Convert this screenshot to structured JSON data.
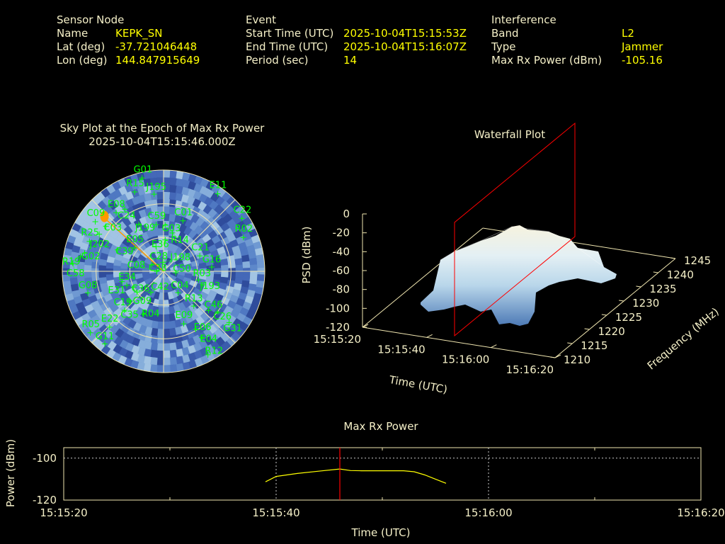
{
  "header": {
    "sensor": {
      "title": "Sensor Node",
      "rows": [
        {
          "label": "Name",
          "value": "KEPK_SN"
        },
        {
          "label": "Lat (deg)",
          "value": "-37.721046448"
        },
        {
          "label": "Lon (deg)",
          "value": "144.847915649"
        }
      ]
    },
    "event": {
      "title": "Event",
      "rows": [
        {
          "label": "Start Time (UTC)",
          "value": "2025-10-04T15:15:53Z"
        },
        {
          "label": "End Time (UTC)",
          "value": "2025-10-04T15:16:07Z"
        },
        {
          "label": "Period (sec)",
          "value": "14"
        }
      ]
    },
    "interference": {
      "title": "Interference",
      "rows": [
        {
          "label": "Band",
          "value": "L2"
        },
        {
          "label": "Type",
          "value": "Jammer"
        },
        {
          "label": "Max Rx Power (dBm)",
          "value": "-105.16"
        }
      ]
    }
  },
  "colors": {
    "label": "#f5f0c8",
    "value": "#ffff00",
    "satellite": "#00ff00",
    "jammer": "#ff9900",
    "epoch_marker": "#ff0000",
    "series": "#ffff00"
  },
  "chart_data": [
    {
      "type": "scatter",
      "subtype": "polar-sky-plot",
      "title": "Sky Plot at the Epoch of Max Rx Power",
      "subtitle": "2025-10-04T15:15:46.000Z",
      "elevation_rings": [
        0,
        30,
        60
      ],
      "satellites": [
        {
          "name": "G01",
          "az": 347,
          "el": 5
        },
        {
          "name": "R15",
          "az": 340,
          "el": 15
        },
        {
          "name": "J195",
          "az": 353,
          "el": 21
        },
        {
          "name": "E11",
          "az": 35,
          "el": 6
        },
        {
          "name": "C22",
          "az": 56,
          "el": 6
        },
        {
          "name": "R02",
          "az": 67,
          "el": 13
        },
        {
          "name": "E08",
          "az": 321,
          "el": 23
        },
        {
          "name": "C24",
          "az": 328,
          "el": 25
        },
        {
          "name": "C09",
          "az": 306,
          "el": 15
        },
        {
          "name": "C03",
          "az": 308,
          "el": 25
        },
        {
          "name": "J199",
          "az": 332,
          "el": 43
        },
        {
          "name": "C59",
          "az": 351,
          "el": 48
        },
        {
          "name": "G03",
          "az": 2,
          "el": 49
        },
        {
          "name": "C01",
          "az": 21,
          "el": 42
        },
        {
          "name": "R14",
          "az": 13,
          "el": 55
        },
        {
          "name": "E05",
          "az": 309,
          "el": 57
        },
        {
          "name": "E36",
          "az": 3,
          "el": 62
        },
        {
          "name": "C39",
          "az": 295,
          "el": 45
        },
        {
          "name": "C28",
          "az": 343,
          "el": 67
        },
        {
          "name": "C21",
          "az": 67,
          "el": 55
        },
        {
          "name": "G16",
          "az": 85,
          "el": 47
        },
        {
          "name": "C38",
          "az": 298,
          "el": 78
        },
        {
          "name": "J198",
          "az": 356,
          "el": 82
        },
        {
          "name": "C50",
          "az": 97,
          "el": 79
        },
        {
          "name": "R25",
          "az": 292,
          "el": 19
        },
        {
          "name": "J202",
          "az": 300,
          "el": 24
        },
        {
          "name": "G02",
          "az": 283,
          "el": 18
        },
        {
          "name": "R19",
          "az": 280,
          "el": 15
        },
        {
          "name": "C58",
          "az": 275,
          "el": 9
        },
        {
          "name": "G08",
          "az": 254,
          "el": 20
        },
        {
          "name": "E34",
          "az": 249,
          "el": 55
        },
        {
          "name": "C36",
          "az": 242,
          "el": 60
        },
        {
          "name": "G09",
          "az": 232,
          "el": 60
        },
        {
          "name": "C19",
          "az": 229,
          "el": 50
        },
        {
          "name": "C35",
          "az": 225,
          "el": 41
        },
        {
          "name": "R04",
          "az": 205,
          "el": 48
        },
        {
          "name": "C42",
          "az": 211,
          "el": 68
        },
        {
          "name": "C08",
          "az": 270,
          "el": 84
        },
        {
          "name": "C04",
          "az": 146,
          "el": 67
        },
        {
          "name": "R03",
          "az": 104,
          "el": 58
        },
        {
          "name": "J193",
          "az": 109,
          "el": 53
        },
        {
          "name": "R13",
          "az": 139,
          "el": 49
        },
        {
          "name": "C46",
          "az": 131,
          "el": 37
        },
        {
          "name": "C26",
          "az": 127,
          "el": 30
        },
        {
          "name": "G31",
          "az": 128,
          "el": 16
        },
        {
          "name": "E09",
          "az": 159,
          "el": 40
        },
        {
          "name": "E06",
          "az": 151,
          "el": 31
        },
        {
          "name": "E04",
          "az": 150,
          "el": 22
        },
        {
          "name": "R12",
          "az": 152,
          "el": 6
        },
        {
          "name": "R05",
          "az": 230,
          "el": 5
        },
        {
          "name": "E22",
          "az": 224,
          "el": 21
        },
        {
          "name": "G11",
          "az": 219,
          "el": 7
        },
        {
          "name": "E31",
          "az": 256,
          "el": 52
        }
      ],
      "jammer": {
        "az": 312,
        "el": 21
      }
    },
    {
      "type": "surface",
      "subtype": "waterfall-3d",
      "title": "Waterfall Plot",
      "xlabel": "Time (UTC)",
      "ylabel": "Frequency (MHz)",
      "zlabel": "PSD (dBm)",
      "x_ticks": [
        "15:15:20",
        "15:15:40",
        "15:16:00",
        "15:16:20"
      ],
      "y_ticks": [
        "1210",
        "1215",
        "1220",
        "1225",
        "1230",
        "1235",
        "1240",
        "1245"
      ],
      "z_ticks": [
        "0",
        "-20",
        "-40",
        "-60",
        "-80",
        "-100",
        "-120"
      ],
      "zlim": [
        -120,
        0
      ],
      "epoch_plane_time": "15:15:46"
    },
    {
      "type": "line",
      "title": "Max Rx Power",
      "xlabel": "Time (UTC)",
      "ylabel": "Power (dBm)",
      "x_ticks": [
        "15:15:20",
        "15:15:40",
        "15:16:00",
        "15:16:20"
      ],
      "y_ticks": [
        "-100",
        "-120"
      ],
      "ylim": [
        -120,
        -95
      ],
      "xlim": [
        "15:15:20",
        "15:16:20"
      ],
      "grid": true,
      "epoch_marker": "15:15:46",
      "x": [
        "15:15:39",
        "15:15:40",
        "15:15:42",
        "15:15:44",
        "15:15:46",
        "15:15:47",
        "15:15:48",
        "15:15:52",
        "15:15:53",
        "15:15:54",
        "15:15:55",
        "15:15:56"
      ],
      "values": [
        -111.3,
        -108.7,
        -107.3,
        -106.2,
        -105.16,
        -105.9,
        -106,
        -106,
        -106.5,
        -108,
        -110,
        -112
      ]
    }
  ]
}
